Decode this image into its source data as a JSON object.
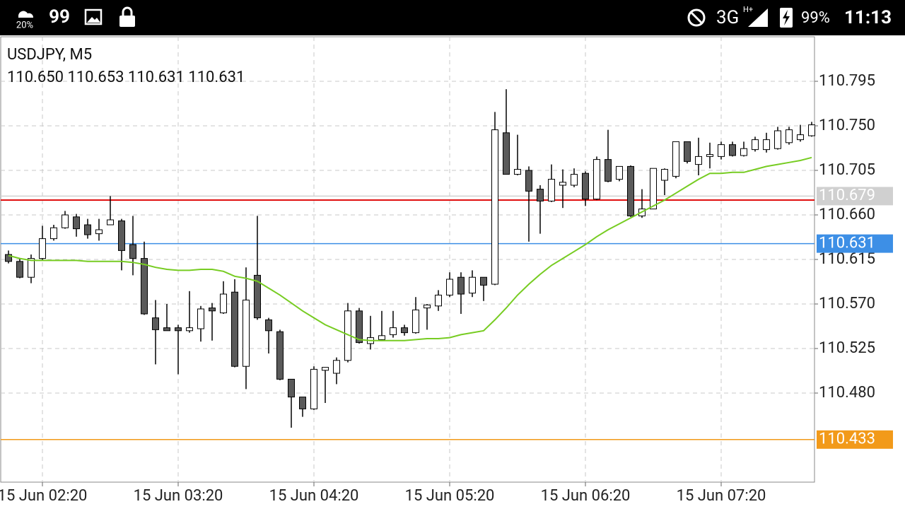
{
  "status_bar": {
    "weather": "20%",
    "notification_count": "99",
    "network": "3G",
    "network_sub": "H+",
    "battery": "99%",
    "time": "11:13"
  },
  "chart_data": {
    "type": "candlestick",
    "title": "USDJPY, M5",
    "subtitle": "110.650 110.653 110.631 110.631",
    "categories": [
      null,
      null,
      null,
      "15 Jun 02:20",
      null,
      null,
      null,
      null,
      null,
      null,
      null,
      null,
      null,
      null,
      null,
      "15 Jun 03:20",
      null,
      null,
      null,
      null,
      null,
      null,
      null,
      null,
      null,
      null,
      null,
      "15 Jun 04:20",
      null,
      null,
      null,
      null,
      null,
      null,
      null,
      null,
      null,
      null,
      null,
      "15 Jun 05:20",
      null,
      null,
      null,
      null,
      null,
      null,
      null,
      null,
      null,
      null,
      null,
      "15 Jun 06:20",
      null,
      null,
      null,
      null,
      null,
      null,
      null,
      null,
      null,
      null,
      null,
      "15 Jun 07:20",
      null,
      null,
      null,
      null,
      null,
      null,
      null,
      null
    ],
    "open": [
      110.62,
      110.613,
      110.597,
      110.616,
      110.636,
      110.647,
      110.658,
      110.65,
      110.641,
      110.65,
      110.654,
      110.63,
      110.616,
      110.556,
      110.546,
      110.546,
      110.543,
      110.545,
      110.566,
      110.561,
      110.582,
      110.507,
      110.599,
      110.554,
      110.542,
      110.494,
      110.476,
      110.464,
      110.503,
      110.5,
      110.513,
      110.563,
      110.53,
      110.534,
      110.539,
      110.546,
      110.541,
      110.566,
      110.568,
      110.579,
      110.597,
      110.581,
      110.597,
      110.59,
      110.743,
      110.701,
      110.705,
      110.686,
      110.674,
      110.69,
      110.69,
      110.702,
      110.676,
      110.716,
      110.696,
      110.709,
      110.659,
      110.666,
      110.695,
      110.699,
      110.734,
      110.711,
      110.719,
      110.719,
      110.731,
      110.72,
      110.726,
      110.726,
      110.727,
      110.733,
      110.736,
      110.74
    ],
    "high": [
      110.624,
      110.616,
      110.62,
      110.649,
      110.65,
      110.664,
      110.661,
      110.656,
      110.656,
      110.679,
      110.656,
      110.659,
      110.633,
      110.574,
      110.57,
      110.549,
      110.583,
      110.568,
      110.571,
      110.593,
      110.595,
      110.607,
      110.659,
      110.556,
      110.544,
      110.494,
      110.476,
      110.507,
      110.506,
      110.516,
      110.571,
      110.566,
      110.558,
      110.563,
      110.563,
      110.549,
      110.577,
      110.57,
      110.584,
      110.602,
      110.602,
      110.604,
      110.597,
      110.764,
      110.787,
      110.741,
      110.709,
      110.69,
      110.711,
      110.706,
      110.707,
      110.704,
      110.719,
      110.746,
      110.709,
      110.71,
      110.686,
      110.707,
      110.707,
      110.734,
      110.734,
      110.738,
      110.733,
      110.734,
      110.734,
      110.734,
      110.739,
      110.743,
      110.749,
      110.749,
      110.751,
      110.754
    ],
    "low": [
      110.611,
      110.596,
      110.591,
      110.614,
      110.634,
      110.646,
      110.638,
      110.636,
      110.634,
      110.65,
      110.604,
      110.599,
      110.559,
      110.509,
      110.543,
      110.499,
      110.541,
      110.532,
      110.533,
      110.56,
      110.506,
      110.484,
      110.554,
      110.52,
      110.493,
      110.445,
      110.456,
      110.463,
      110.47,
      110.489,
      110.511,
      110.53,
      110.524,
      110.533,
      110.536,
      110.538,
      110.54,
      110.544,
      110.563,
      110.577,
      110.56,
      110.577,
      110.573,
      110.589,
      110.701,
      110.7,
      110.633,
      110.641,
      110.673,
      110.667,
      110.688,
      110.669,
      110.675,
      110.693,
      110.694,
      110.658,
      110.657,
      110.666,
      110.68,
      110.697,
      110.712,
      110.7,
      110.707,
      110.716,
      110.719,
      110.719,
      110.724,
      110.723,
      110.726,
      110.731,
      110.734,
      110.739
    ],
    "close": [
      110.613,
      110.597,
      110.616,
      110.636,
      110.647,
      110.66,
      110.646,
      110.64,
      110.645,
      110.655,
      110.624,
      110.616,
      110.56,
      110.544,
      110.543,
      110.543,
      110.546,
      110.565,
      110.563,
      110.58,
      110.507,
      110.574,
      110.556,
      110.543,
      110.494,
      110.476,
      110.464,
      110.504,
      110.506,
      110.513,
      110.563,
      110.531,
      110.536,
      110.538,
      110.546,
      110.541,
      110.564,
      110.569,
      110.579,
      110.595,
      110.58,
      110.597,
      110.589,
      110.746,
      110.701,
      110.706,
      110.684,
      110.674,
      110.696,
      110.693,
      110.701,
      110.676,
      110.716,
      110.694,
      110.709,
      110.659,
      110.666,
      110.707,
      110.706,
      110.734,
      110.714,
      110.719,
      110.721,
      110.731,
      110.72,
      110.727,
      110.736,
      110.736,
      110.745,
      110.746,
      110.741,
      110.751
    ],
    "up_color": "#ffffff",
    "down_color": "#5a5a5a",
    "moving_average": {
      "color": "#77cc22",
      "values": [
        110.619,
        110.616,
        110.614,
        110.614,
        110.614,
        110.614,
        110.614,
        110.613,
        110.613,
        110.613,
        110.613,
        110.612,
        110.61,
        110.607,
        110.605,
        110.604,
        110.604,
        110.605,
        110.605,
        110.603,
        110.598,
        110.596,
        110.593,
        110.586,
        110.579,
        110.571,
        110.563,
        110.556,
        110.549,
        110.544,
        110.539,
        110.534,
        110.533,
        110.533,
        110.533,
        110.533,
        110.534,
        110.535,
        110.535,
        110.536,
        110.539,
        110.541,
        110.543,
        110.554,
        110.566,
        110.579,
        110.59,
        110.6,
        110.609,
        110.616,
        110.623,
        110.63,
        110.638,
        110.645,
        110.651,
        110.657,
        110.663,
        110.669,
        110.675,
        110.682,
        110.689,
        110.696,
        110.702,
        110.702,
        110.703,
        110.703,
        110.706,
        110.709,
        110.711,
        110.713,
        110.715,
        110.718
      ]
    },
    "levels": [
      {
        "value": 110.679,
        "color": "#d0d0d0",
        "label_box": true
      },
      {
        "value": 110.675,
        "color": "#e01010",
        "label_box": false
      },
      {
        "value": 110.631,
        "color": "#3d8fe6",
        "label_box": true
      },
      {
        "value": 110.433,
        "color": "#f29a1a",
        "label_box": true
      }
    ],
    "ylim": [
      110.39,
      110.84
    ],
    "yticks": [
      110.795,
      {
        "value": 110.75,
        "label": "110.750"
      },
      110.705,
      {
        "value": 110.66,
        "label": "110.660"
      },
      110.615,
      {
        "value": 110.57,
        "label": "110.570"
      },
      110.525,
      {
        "value": 110.48,
        "label": "110.480"
      }
    ],
    "grid": true
  }
}
